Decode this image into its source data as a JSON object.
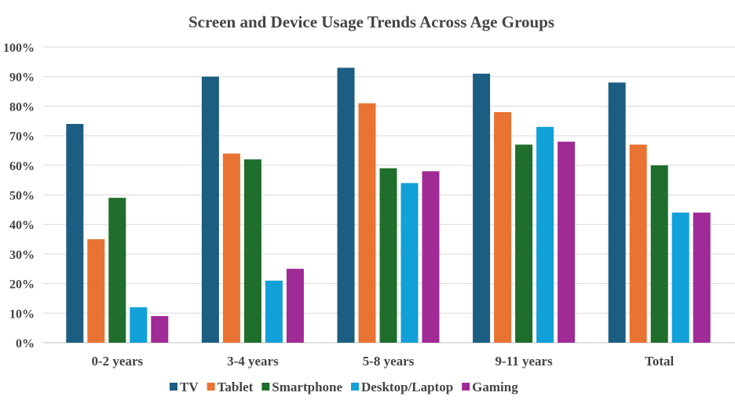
{
  "chart_data": {
    "type": "bar",
    "title": "Screen and Device Usage Trends Across Age Groups",
    "xlabel": "",
    "ylabel": "",
    "ylim": [
      0,
      100
    ],
    "yticks": [
      "0%",
      "10%",
      "20%",
      "30%",
      "40%",
      "50%",
      "60%",
      "70%",
      "80%",
      "90%",
      "100%"
    ],
    "grid": true,
    "legend_position": "bottom",
    "categories": [
      "0-2 years",
      "3-4 years",
      "5-8 years",
      "9-11 years",
      "Total"
    ],
    "series": [
      {
        "name": "TV",
        "color": "#1b5e82",
        "values": [
          74,
          90,
          93,
          91,
          88
        ]
      },
      {
        "name": "Tablet",
        "color": "#e97332",
        "values": [
          35,
          64,
          81,
          78,
          67
        ]
      },
      {
        "name": "Smartphone",
        "color": "#1f6e2c",
        "values": [
          49,
          62,
          59,
          67,
          60
        ]
      },
      {
        "name": "Desktop/Laptop",
        "color": "#12a0d8",
        "values": [
          12,
          21,
          54,
          73,
          44
        ]
      },
      {
        "name": "Gaming",
        "color": "#a02a96",
        "values": [
          9,
          25,
          58,
          68,
          44
        ]
      }
    ]
  }
}
